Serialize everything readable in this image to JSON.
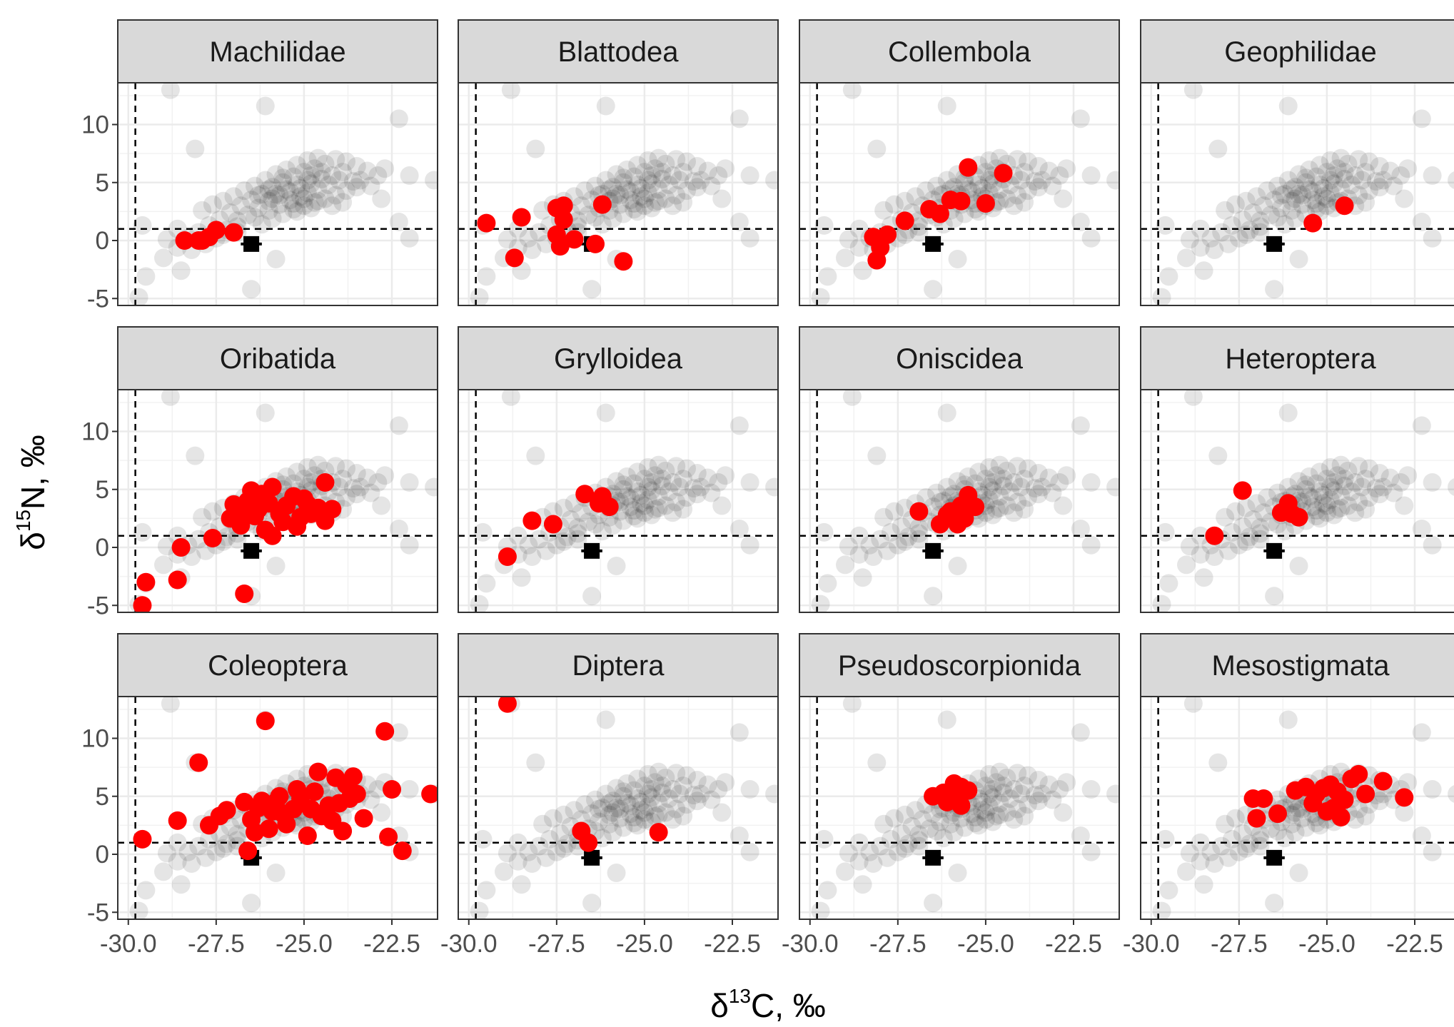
{
  "xlabel": {
    "pre": "δ",
    "sup": "13",
    "post": "C, ‰"
  },
  "ylabel": {
    "pre": "δ",
    "sup": "15",
    "post": "N, ‰"
  },
  "colors": {
    "highlight": "#ff0000",
    "background_points": "#000000",
    "reference": "#000000",
    "strip_fill": "#d9d9d9",
    "grid": "#ebebeb"
  },
  "chart_data": {
    "type": "scatter",
    "facet_layout": {
      "rows": 3,
      "cols": 4
    },
    "xlim": [
      -30.3,
      -21.2
    ],
    "ylim": [
      -5.6,
      13.6
    ],
    "x_ticks": [
      -30.0,
      -27.5,
      -25.0,
      -22.5
    ],
    "x_tick_labels": [
      "-30.0",
      "-27.5",
      "-25.0",
      "-22.5"
    ],
    "y_ticks": [
      -5,
      0,
      5,
      10
    ],
    "y_tick_labels": [
      "-5",
      "0",
      "5",
      "10"
    ],
    "grid": true,
    "reference_lines": {
      "vertical_x": -29.8,
      "horizontal_y": 1.0,
      "style": "dashed"
    },
    "reference_point": {
      "x": -26.5,
      "y": -0.3,
      "xerr": 0.3,
      "yerr": 0.5
    },
    "background_series": [
      [
        -28.8,
        13.0
      ],
      [
        -22.3,
        10.5
      ],
      [
        -26.1,
        11.6
      ],
      [
        -28.1,
        7.9
      ],
      [
        -22.0,
        5.6
      ],
      [
        -21.3,
        5.2
      ],
      [
        -29.6,
        1.3
      ],
      [
        -22.3,
        1.6
      ],
      [
        -22.0,
        0.2
      ],
      [
        -29.5,
        -3.1
      ],
      [
        -29.7,
        -4.9
      ],
      [
        -26.5,
        -4.2
      ],
      [
        -25.8,
        -1.6
      ],
      [
        -28.5,
        -2.6
      ],
      [
        -29.0,
        -1.5
      ],
      [
        -28.6,
        -0.6
      ],
      [
        -28.3,
        0.2
      ],
      [
        -28.0,
        0.7
      ],
      [
        -27.7,
        1.3
      ],
      [
        -27.4,
        1.8
      ],
      [
        -27.1,
        2.4
      ],
      [
        -26.8,
        3.0
      ],
      [
        -26.5,
        3.5
      ],
      [
        -26.2,
        4.0
      ],
      [
        -25.9,
        4.6
      ],
      [
        -25.6,
        5.0
      ],
      [
        -25.3,
        5.5
      ],
      [
        -25.0,
        5.9
      ],
      [
        -24.7,
        6.2
      ],
      [
        -24.4,
        6.6
      ],
      [
        -24.1,
        7.0
      ],
      [
        -23.8,
        6.8
      ],
      [
        -23.5,
        6.4
      ],
      [
        -23.2,
        6.0
      ],
      [
        -22.9,
        5.6
      ],
      [
        -26.9,
        1.7
      ],
      [
        -26.6,
        2.2
      ],
      [
        -26.3,
        2.8
      ],
      [
        -26.0,
        3.4
      ],
      [
        -25.7,
        3.9
      ],
      [
        -25.4,
        4.2
      ],
      [
        -25.1,
        4.5
      ],
      [
        -24.8,
        4.9
      ],
      [
        -24.5,
        5.3
      ],
      [
        -24.2,
        5.6
      ],
      [
        -23.9,
        5.9
      ],
      [
        -23.6,
        5.1
      ],
      [
        -27.9,
        2.6
      ],
      [
        -27.6,
        3.1
      ],
      [
        -27.3,
        3.4
      ],
      [
        -27.0,
        3.8
      ],
      [
        -26.7,
        4.3
      ],
      [
        -26.4,
        4.7
      ],
      [
        -26.1,
        5.2
      ],
      [
        -25.8,
        5.7
      ],
      [
        -25.5,
        6.1
      ],
      [
        -25.2,
        6.5
      ],
      [
        -24.9,
        6.9
      ],
      [
        -24.6,
        7.1
      ],
      [
        -27.5,
        0.2
      ],
      [
        -27.2,
        0.9
      ],
      [
        -26.9,
        1.2
      ],
      [
        -26.2,
        1.4
      ],
      [
        -25.9,
        1.9
      ],
      [
        -25.6,
        2.3
      ],
      [
        -25.3,
        2.7
      ],
      [
        -25.0,
        3.0
      ],
      [
        -24.7,
        3.3
      ],
      [
        -24.4,
        3.6
      ],
      [
        -24.1,
        3.9
      ],
      [
        -23.8,
        4.3
      ],
      [
        -23.5,
        4.6
      ],
      [
        -26.4,
        2.0
      ],
      [
        -26.0,
        2.6
      ],
      [
        -25.7,
        3.1
      ],
      [
        -25.4,
        3.5
      ],
      [
        -25.1,
        3.8
      ],
      [
        -24.9,
        4.1
      ],
      [
        -24.6,
        4.4
      ],
      [
        -24.3,
        4.8
      ],
      [
        -24.0,
        5.2
      ],
      [
        -25.8,
        4.0
      ],
      [
        -25.5,
        4.4
      ],
      [
        -25.2,
        4.8
      ],
      [
        -24.9,
        5.2
      ],
      [
        -25.0,
        3.6
      ],
      [
        -24.6,
        3.4
      ],
      [
        -25.3,
        3.2
      ],
      [
        -25.9,
        3.6
      ],
      [
        -26.3,
        3.9
      ],
      [
        -24.8,
        5.6
      ],
      [
        -24.5,
        5.9
      ],
      [
        -25.6,
        5.4
      ],
      [
        -26.0,
        4.4
      ],
      [
        -25.2,
        2.5
      ],
      [
        -24.8,
        2.8
      ],
      [
        -24.2,
        3.0
      ],
      [
        -23.9,
        3.3
      ],
      [
        -28.2,
        -0.8
      ],
      [
        -27.8,
        -0.3
      ],
      [
        -27.3,
        0.5
      ],
      [
        -26.9,
        0.7
      ],
      [
        -28.9,
        0.1
      ],
      [
        -28.6,
        1.0
      ],
      [
        -23.4,
        5.2
      ],
      [
        -23.1,
        4.7
      ],
      [
        -22.8,
        3.6
      ],
      [
        -22.7,
        6.2
      ]
    ],
    "panels": [
      {
        "name": "Machilidae",
        "points": [
          [
            -28.4,
            0.0
          ],
          [
            -28.0,
            0.0
          ],
          [
            -27.7,
            0.3
          ],
          [
            -27.5,
            0.9
          ],
          [
            -27.0,
            0.7
          ],
          [
            -27.9,
            0.0
          ]
        ]
      },
      {
        "name": "Blattodea",
        "points": [
          [
            -29.5,
            1.5
          ],
          [
            -28.5,
            2.0
          ],
          [
            -27.5,
            2.8
          ],
          [
            -27.3,
            3.0
          ],
          [
            -26.2,
            3.1
          ],
          [
            -27.3,
            1.8
          ],
          [
            -27.5,
            0.5
          ],
          [
            -27.0,
            0.1
          ],
          [
            -26.4,
            -0.3
          ],
          [
            -28.7,
            -1.5
          ],
          [
            -27.4,
            -0.5
          ],
          [
            -25.6,
            -1.8
          ]
        ]
      },
      {
        "name": "Collembola",
        "points": [
          [
            -25.5,
            6.3
          ],
          [
            -24.5,
            5.8
          ],
          [
            -25.7,
            3.4
          ],
          [
            -25.0,
            3.2
          ],
          [
            -26.0,
            3.5
          ],
          [
            -26.3,
            2.3
          ],
          [
            -26.6,
            2.7
          ],
          [
            -27.3,
            1.7
          ],
          [
            -27.8,
            0.5
          ],
          [
            -28.2,
            0.3
          ],
          [
            -28.0,
            -0.6
          ],
          [
            -28.1,
            -1.7
          ]
        ]
      },
      {
        "name": "Geophilidae",
        "points": [
          [
            -24.5,
            3.0
          ],
          [
            -25.4,
            1.5
          ]
        ]
      },
      {
        "name": "Oribatida",
        "points": [
          [
            -29.6,
            -5.0
          ],
          [
            -29.5,
            -3.0
          ],
          [
            -28.6,
            -2.8
          ],
          [
            -28.5,
            0.0
          ],
          [
            -27.6,
            0.8
          ],
          [
            -26.7,
            -4.0
          ],
          [
            -27.1,
            2.5
          ],
          [
            -26.8,
            3.0
          ],
          [
            -26.6,
            4.0
          ],
          [
            -26.4,
            2.7
          ],
          [
            -26.2,
            4.6
          ],
          [
            -26.0,
            3.8
          ],
          [
            -25.9,
            5.2
          ],
          [
            -25.7,
            2.9
          ],
          [
            -25.5,
            3.6
          ],
          [
            -25.3,
            4.4
          ],
          [
            -25.1,
            2.6
          ],
          [
            -24.9,
            3.7
          ],
          [
            -24.6,
            3.4
          ],
          [
            -24.4,
            2.3
          ],
          [
            -24.2,
            3.3
          ],
          [
            -24.4,
            5.6
          ],
          [
            -26.1,
            1.5
          ],
          [
            -25.9,
            1.0
          ],
          [
            -26.5,
            4.9
          ],
          [
            -26.8,
            1.9
          ],
          [
            -25.6,
            2.2
          ],
          [
            -25.0,
            4.2
          ],
          [
            -26.3,
            3.3
          ],
          [
            -27.0,
            3.7
          ],
          [
            -25.2,
            1.8
          ],
          [
            -24.8,
            2.9
          ]
        ]
      },
      {
        "name": "Grylloidea",
        "points": [
          [
            -28.9,
            -0.8
          ],
          [
            -28.2,
            2.3
          ],
          [
            -27.6,
            2.0
          ],
          [
            -26.7,
            4.6
          ],
          [
            -26.3,
            3.8
          ],
          [
            -26.0,
            3.5
          ],
          [
            -26.2,
            4.4
          ]
        ]
      },
      {
        "name": "Oniscidea",
        "points": [
          [
            -26.9,
            3.1
          ],
          [
            -26.3,
            2.0
          ],
          [
            -26.0,
            3.1
          ],
          [
            -25.7,
            3.6
          ],
          [
            -25.5,
            4.5
          ],
          [
            -25.6,
            2.5
          ],
          [
            -25.3,
            3.5
          ],
          [
            -26.1,
            2.8
          ],
          [
            -25.8,
            2.0
          ]
        ]
      },
      {
        "name": "Heteroptera",
        "points": [
          [
            -28.2,
            1.0
          ],
          [
            -27.4,
            4.9
          ],
          [
            -26.3,
            3.0
          ],
          [
            -26.0,
            2.9
          ],
          [
            -26.1,
            3.8
          ],
          [
            -25.8,
            2.6
          ]
        ]
      },
      {
        "name": "Coleoptera",
        "points": [
          [
            -29.6,
            1.3
          ],
          [
            -28.6,
            2.9
          ],
          [
            -28.0,
            7.9
          ],
          [
            -27.7,
            2.5
          ],
          [
            -27.4,
            3.3
          ],
          [
            -27.2,
            3.8
          ],
          [
            -26.6,
            0.3
          ],
          [
            -26.1,
            11.5
          ],
          [
            -26.7,
            4.5
          ],
          [
            -26.5,
            3.0
          ],
          [
            -26.2,
            4.6
          ],
          [
            -25.9,
            3.7
          ],
          [
            -25.7,
            5.0
          ],
          [
            -25.5,
            2.6
          ],
          [
            -25.3,
            3.9
          ],
          [
            -25.1,
            4.8
          ],
          [
            -24.9,
            1.6
          ],
          [
            -24.7,
            5.4
          ],
          [
            -24.5,
            3.3
          ],
          [
            -24.3,
            4.2
          ],
          [
            -24.1,
            6.6
          ],
          [
            -23.9,
            2.0
          ],
          [
            -23.7,
            4.8
          ],
          [
            -23.5,
            5.2
          ],
          [
            -23.3,
            3.1
          ],
          [
            -23.8,
            6.0
          ],
          [
            -22.7,
            10.6
          ],
          [
            -22.5,
            5.6
          ],
          [
            -22.6,
            1.5
          ],
          [
            -22.2,
            0.3
          ],
          [
            -21.4,
            5.2
          ],
          [
            -24.6,
            7.1
          ],
          [
            -26.0,
            2.2
          ],
          [
            -25.2,
            5.6
          ],
          [
            -23.6,
            6.7
          ],
          [
            -24.0,
            4.4
          ],
          [
            -26.3,
            4.0
          ],
          [
            -25.8,
            4.5
          ],
          [
            -24.8,
            3.9
          ],
          [
            -24.2,
            2.9
          ],
          [
            -26.4,
            1.9
          ],
          [
            -25.6,
            3.5
          ]
        ]
      },
      {
        "name": "Diptera",
        "points": [
          [
            -28.9,
            13.0
          ],
          [
            -26.8,
            2.0
          ],
          [
            -26.6,
            1.0
          ],
          [
            -24.6,
            1.9
          ]
        ]
      },
      {
        "name": "Pseudoscorpionida",
        "points": [
          [
            -26.5,
            5.0
          ],
          [
            -26.1,
            4.5
          ],
          [
            -25.7,
            5.8
          ],
          [
            -25.9,
            6.1
          ],
          [
            -25.5,
            5.5
          ],
          [
            -25.7,
            4.2
          ],
          [
            -25.9,
            4.8
          ],
          [
            -26.2,
            5.3
          ]
        ]
      },
      {
        "name": "Mesostigmata",
        "points": [
          [
            -27.1,
            4.8
          ],
          [
            -26.8,
            4.8
          ],
          [
            -27.0,
            3.1
          ],
          [
            -26.4,
            3.5
          ],
          [
            -25.9,
            5.5
          ],
          [
            -25.6,
            5.8
          ],
          [
            -25.3,
            5.2
          ],
          [
            -25.1,
            5.7
          ],
          [
            -24.9,
            6.0
          ],
          [
            -24.7,
            5.4
          ],
          [
            -24.5,
            4.7
          ],
          [
            -24.3,
            6.5
          ],
          [
            -24.1,
            6.9
          ],
          [
            -23.9,
            5.2
          ],
          [
            -23.4,
            6.3
          ],
          [
            -22.8,
            4.9
          ],
          [
            -25.0,
            3.7
          ],
          [
            -24.6,
            3.2
          ],
          [
            -25.4,
            4.4
          ],
          [
            -24.8,
            4.0
          ]
        ]
      }
    ]
  }
}
